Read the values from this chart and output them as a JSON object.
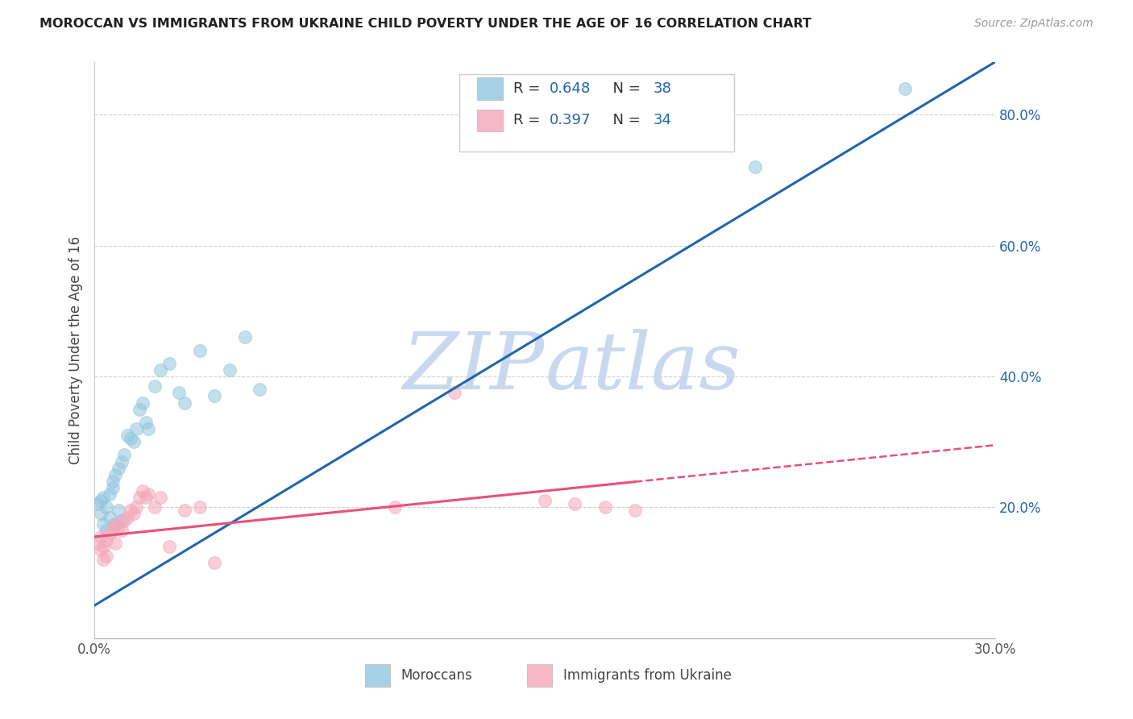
{
  "title": "MOROCCAN VS IMMIGRANTS FROM UKRAINE CHILD POVERTY UNDER THE AGE OF 16 CORRELATION CHART",
  "source": "Source: ZipAtlas.com",
  "ylabel": "Child Poverty Under the Age of 16",
  "xlim": [
    0.0,
    0.3
  ],
  "ylim": [
    0.0,
    0.88
  ],
  "moroccan_color": "#92C5DE",
  "ukraine_color": "#F4A7B9",
  "moroccan_line_color": "#2166AC",
  "ukraine_line_color": "#E8507A",
  "right_ytick_color": "#2166AC",
  "moroccan_x": [
    0.001,
    0.002,
    0.002,
    0.003,
    0.003,
    0.004,
    0.004,
    0.005,
    0.005,
    0.006,
    0.006,
    0.007,
    0.007,
    0.008,
    0.008,
    0.009,
    0.009,
    0.01,
    0.011,
    0.012,
    0.013,
    0.014,
    0.015,
    0.016,
    0.017,
    0.018,
    0.02,
    0.022,
    0.025,
    0.028,
    0.03,
    0.035,
    0.04,
    0.045,
    0.05,
    0.055,
    0.22,
    0.27
  ],
  "moroccan_y": [
    0.205,
    0.21,
    0.19,
    0.215,
    0.175,
    0.2,
    0.165,
    0.22,
    0.185,
    0.23,
    0.24,
    0.25,
    0.175,
    0.26,
    0.195,
    0.27,
    0.18,
    0.28,
    0.31,
    0.305,
    0.3,
    0.32,
    0.35,
    0.36,
    0.33,
    0.32,
    0.385,
    0.41,
    0.42,
    0.375,
    0.36,
    0.44,
    0.37,
    0.41,
    0.46,
    0.38,
    0.72,
    0.84
  ],
  "ukraine_x": [
    0.001,
    0.002,
    0.002,
    0.003,
    0.003,
    0.004,
    0.004,
    0.005,
    0.006,
    0.007,
    0.007,
    0.008,
    0.009,
    0.01,
    0.011,
    0.012,
    0.013,
    0.014,
    0.015,
    0.016,
    0.017,
    0.018,
    0.02,
    0.022,
    0.025,
    0.03,
    0.035,
    0.04,
    0.1,
    0.12,
    0.15,
    0.16,
    0.17,
    0.18
  ],
  "ukraine_y": [
    0.145,
    0.155,
    0.135,
    0.14,
    0.12,
    0.15,
    0.125,
    0.16,
    0.165,
    0.175,
    0.145,
    0.17,
    0.165,
    0.18,
    0.185,
    0.195,
    0.19,
    0.2,
    0.215,
    0.225,
    0.215,
    0.22,
    0.2,
    0.215,
    0.14,
    0.195,
    0.2,
    0.115,
    0.2,
    0.375,
    0.21,
    0.205,
    0.2,
    0.195
  ],
  "background_color": "#FFFFFF",
  "grid_color": "#D0D0D0",
  "watermark_text": "ZIPatlas",
  "watermark_color": "#C8D8F0"
}
